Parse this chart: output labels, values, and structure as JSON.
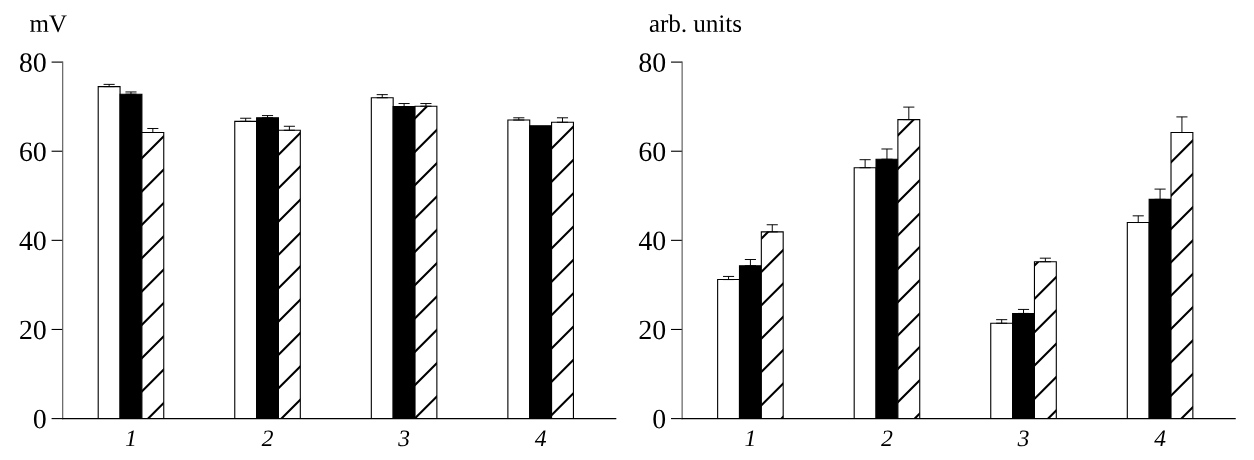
{
  "chart_data": [
    {
      "type": "bar",
      "ylabel": "mV",
      "categories": [
        "1",
        "2",
        "3",
        "4"
      ],
      "ylim": [
        0,
        80
      ],
      "yticks": [
        0,
        20,
        40,
        60,
        80
      ],
      "grid": false,
      "legend": false,
      "series": [
        {
          "color": "#ffffff",
          "values": [
            74.5,
            66.7,
            72.0,
            67.0
          ],
          "errors": [
            [
              74.5,
              75.0
            ],
            [
              66.7,
              67.4
            ],
            [
              72.0,
              72.7
            ],
            [
              67.0,
              67.5
            ]
          ]
        },
        {
          "color": "#000000",
          "values": [
            72.8,
            67.5,
            70.0,
            65.7
          ],
          "errors": [
            [
              72.8,
              73.3
            ],
            [
              67.5,
              68.0
            ],
            [
              70.0,
              70.7
            ],
            null
          ]
        },
        {
          "color": "#ffffff",
          "values": [
            64.2,
            64.7,
            70.1,
            66.5
          ],
          "errors": [
            [
              64.2,
              65.1
            ],
            [
              64.7,
              65.6
            ],
            [
              70.1,
              70.7
            ],
            [
              66.5,
              67.5
            ]
          ]
        }
      ]
    },
    {
      "type": "bar",
      "ylabel": "arb. units",
      "categories": [
        "1",
        "2",
        "3",
        "4"
      ],
      "ylim": [
        0,
        80
      ],
      "yticks": [
        0,
        20,
        40,
        60,
        80
      ],
      "grid": false,
      "legend": false,
      "series": [
        {
          "color": "#ffffff",
          "values": [
            31.2,
            56.3,
            21.4,
            44.0
          ],
          "errors": [
            [
              31.2,
              31.9
            ],
            [
              56.3,
              58.1
            ],
            [
              21.4,
              22.2
            ],
            [
              44.0,
              45.5
            ]
          ]
        },
        {
          "color": "#000000",
          "values": [
            34.3,
            58.2,
            23.6,
            49.2
          ],
          "errors": [
            [
              34.3,
              35.7
            ],
            [
              58.2,
              60.5
            ],
            [
              23.6,
              24.5
            ],
            [
              49.2,
              51.5
            ]
          ]
        },
        {
          "color": "#ffffff",
          "values": [
            41.9,
            67.1,
            35.2,
            64.2
          ],
          "errors": [
            [
              41.9,
              43.5
            ],
            [
              67.1,
              69.9
            ],
            [
              35.2,
              36.0
            ],
            [
              64.2,
              67.7
            ]
          ]
        }
      ]
    }
  ]
}
